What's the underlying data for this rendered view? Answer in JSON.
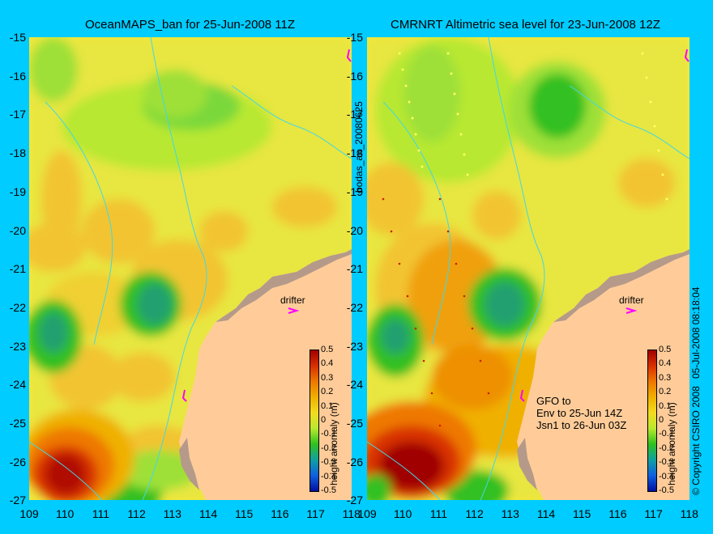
{
  "left_map": {
    "title": "OceanMAPS_ban for 25-Jun-2008 11Z",
    "drifter_label": "drifter"
  },
  "right_map": {
    "title": "CMRNRT Altimetric sea level  for 23-Jun-2008 12Z",
    "drifter_label": "drifter",
    "satellite_note": [
      "GFO to",
      "Env to 25-Jun 14Z",
      "Jsn1 to 26-Jun 03Z"
    ]
  },
  "side_labels": {
    "left_vertical": "bodas_an_20080625",
    "right_vertical": "05-Jul-2008 08:18:04",
    "copyright": "© Copyright CSIRO 2008"
  },
  "axes": {
    "lat_ticks": [
      "-15",
      "-16",
      "-17",
      "-18",
      "-19",
      "-20",
      "-21",
      "-22",
      "-23",
      "-24",
      "-25",
      "-26",
      "-27"
    ],
    "lon_ticks": [
      "109",
      "110",
      "111",
      "112",
      "113",
      "114",
      "115",
      "116",
      "117",
      "118"
    ]
  },
  "colorbar": {
    "label": "height anomaly (m)",
    "ticks": [
      "0.5",
      "0.4",
      "0.3",
      "0.2",
      "0.1",
      "0",
      "-0.1",
      "-0.2",
      "-0.3",
      "-0.4",
      "-0.5"
    ],
    "colors": [
      "#a00000",
      "#d83000",
      "#ee7800",
      "#f0b000",
      "#f2dc20",
      "#b8e830",
      "#30c020",
      "#10a0a0",
      "#1060e0",
      "#0010a0"
    ]
  }
}
